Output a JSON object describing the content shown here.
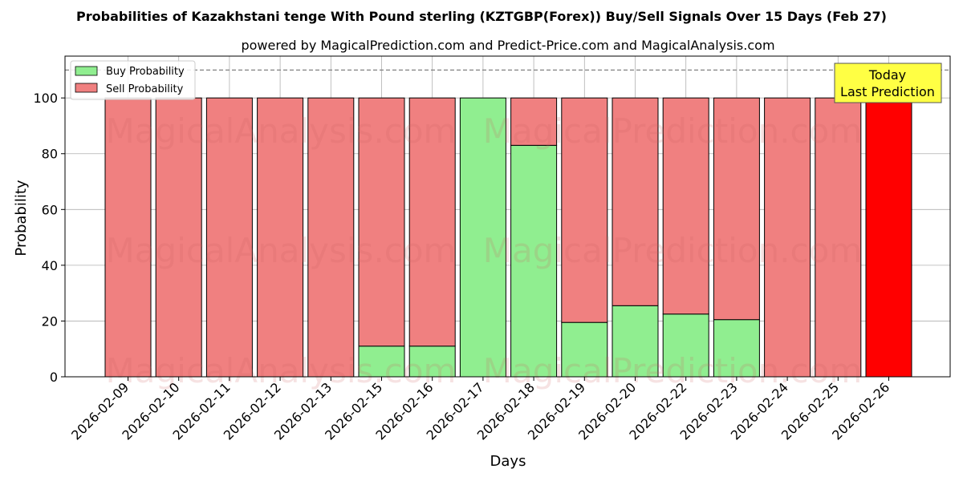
{
  "chart_data": {
    "type": "bar",
    "stacked": true,
    "title": "Probabilities of Kazakhstani tenge With Pound sterling (KZTGBP(Forex)) Buy/Sell Signals Over 15 Days (Feb 27)",
    "subtitle": "powered by MagicalPrediction.com and Predict-Price.com and MagicalAnalysis.com",
    "xlabel": "Days",
    "ylabel": "Probability",
    "ylim": [
      0,
      115
    ],
    "yticks": [
      0,
      20,
      40,
      60,
      80,
      100
    ],
    "reference_line": 110,
    "grid": true,
    "legend_position": "top-left",
    "categories": [
      "2026-02-09",
      "2026-02-10",
      "2026-02-11",
      "2026-02-12",
      "2026-02-13",
      "2026-02-15",
      "2026-02-16",
      "2026-02-17",
      "2026-02-18",
      "2026-02-19",
      "2026-02-20",
      "2026-02-22",
      "2026-02-23",
      "2026-02-24",
      "2026-02-25",
      "2026-02-26"
    ],
    "series": [
      {
        "name": "Buy Probability",
        "color": "#90ee90",
        "values": [
          0,
          0,
          0,
          0,
          0,
          11,
          11,
          100,
          83,
          19.5,
          25.5,
          22.5,
          20.5,
          0,
          0,
          0
        ]
      },
      {
        "name": "Sell Probability",
        "color": "#f08080",
        "values": [
          100,
          100,
          100,
          100,
          100,
          89,
          89,
          0,
          17,
          80.5,
          74.5,
          77.5,
          79.5,
          100,
          100,
          100
        ]
      }
    ],
    "highlight": {
      "category": "2026-02-26",
      "color": "#ff0000"
    },
    "annotation": {
      "lines": [
        "Today",
        "Last Prediction"
      ],
      "background": "#ffff44"
    },
    "watermarks": [
      "MagicalAnalysis.com",
      "MagicalPrediction.com"
    ]
  }
}
